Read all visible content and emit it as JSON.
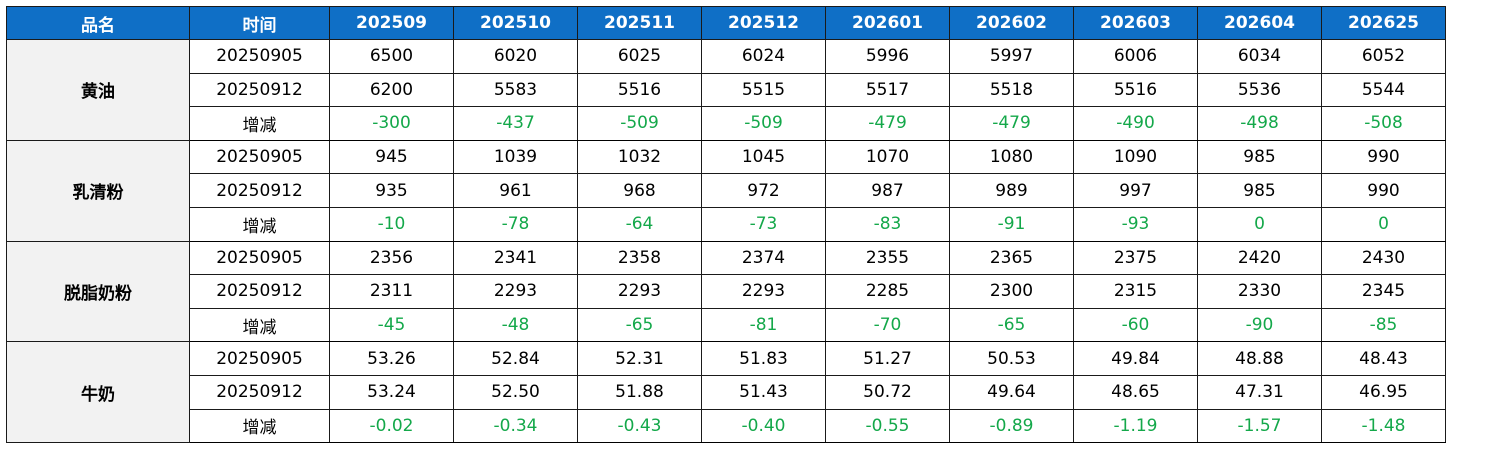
{
  "headers": [
    "品名",
    "时间",
    "202509",
    "202510",
    "202511",
    "202512",
    "202601",
    "202602",
    "202603",
    "202604",
    "202625"
  ],
  "groups": [
    {
      "product": "黄油",
      "rows": [
        {
          "date": "20250905",
          "values": [
            "6500",
            "6020",
            "6025",
            "6024",
            "5996",
            "5997",
            "6006",
            "6034",
            "6052"
          ],
          "diff": false
        },
        {
          "date": "20250912",
          "values": [
            "6200",
            "5583",
            "5516",
            "5515",
            "5517",
            "5518",
            "5516",
            "5536",
            "5544"
          ],
          "diff": false
        },
        {
          "date": "增减",
          "values": [
            "-300",
            "-437",
            "-509",
            "-509",
            "-479",
            "-479",
            "-490",
            "-498",
            "-508"
          ],
          "diff": true
        }
      ]
    },
    {
      "product": "乳清粉",
      "rows": [
        {
          "date": "20250905",
          "values": [
            "945",
            "1039",
            "1032",
            "1045",
            "1070",
            "1080",
            "1090",
            "985",
            "990"
          ],
          "diff": false
        },
        {
          "date": "20250912",
          "values": [
            "935",
            "961",
            "968",
            "972",
            "987",
            "989",
            "997",
            "985",
            "990"
          ],
          "diff": false
        },
        {
          "date": "增减",
          "values": [
            "-10",
            "-78",
            "-64",
            "-73",
            "-83",
            "-91",
            "-93",
            "0",
            "0"
          ],
          "diff": true
        }
      ]
    },
    {
      "product": "脱脂奶粉",
      "rows": [
        {
          "date": "20250905",
          "values": [
            "2356",
            "2341",
            "2358",
            "2374",
            "2355",
            "2365",
            "2375",
            "2420",
            "2430"
          ],
          "diff": false
        },
        {
          "date": "20250912",
          "values": [
            "2311",
            "2293",
            "2293",
            "2293",
            "2285",
            "2300",
            "2315",
            "2330",
            "2345"
          ],
          "diff": false
        },
        {
          "date": "增减",
          "values": [
            "-45",
            "-48",
            "-65",
            "-81",
            "-70",
            "-65",
            "-60",
            "-90",
            "-85"
          ],
          "diff": true
        }
      ]
    },
    {
      "product": "牛奶",
      "rows": [
        {
          "date": "20250905",
          "values": [
            "53.26",
            "52.84",
            "52.31",
            "51.83",
            "51.27",
            "50.53",
            "49.84",
            "48.88",
            "48.43"
          ],
          "diff": false
        },
        {
          "date": "20250912",
          "values": [
            "53.24",
            "52.50",
            "51.88",
            "51.43",
            "50.72",
            "49.64",
            "48.65",
            "47.31",
            "46.95"
          ],
          "diff": false
        },
        {
          "date": "增减",
          "values": [
            "-0.02",
            "-0.34",
            "-0.43",
            "-0.40",
            "-0.55",
            "-0.89",
            "-1.19",
            "-1.57",
            "-1.48"
          ],
          "diff": true
        }
      ]
    }
  ],
  "colors": {
    "header_bg": "#0f6fc6",
    "header_text": "#ffffff",
    "product_bg": "#f2f2f2",
    "diff_text": "#14a84a"
  }
}
